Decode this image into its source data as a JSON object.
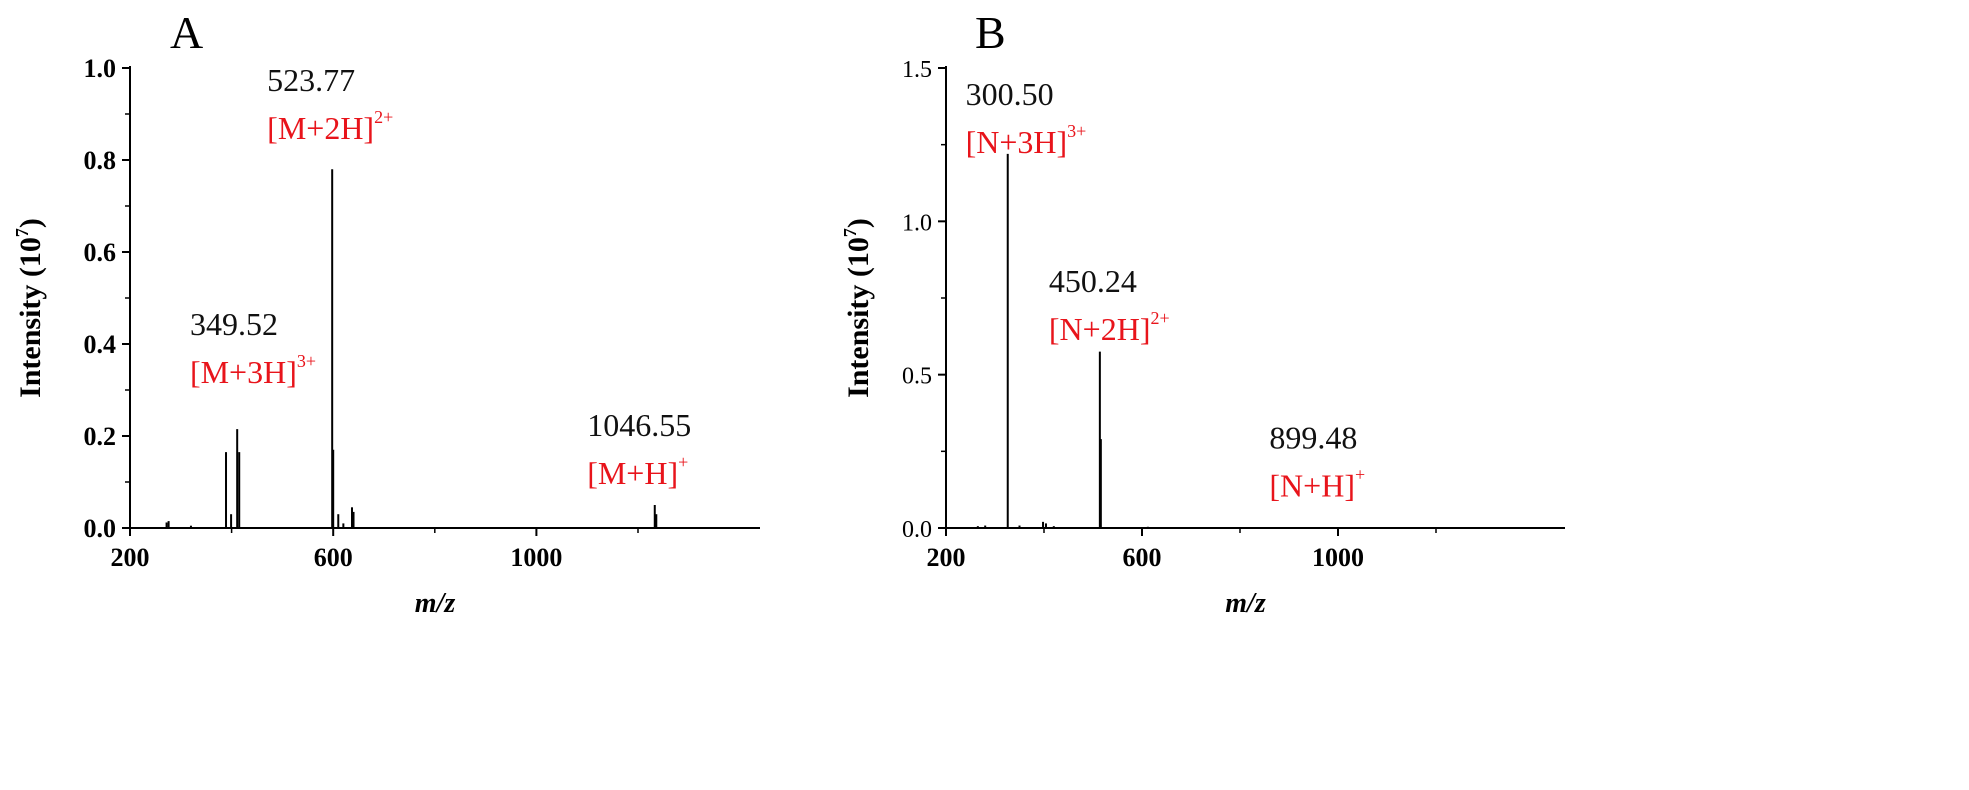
{
  "chart_data": [
    {
      "type": "bar",
      "panel_label": "A",
      "xlabel": "m/z",
      "ylabel": "Intensity (10",
      "ylabel_exp": "7",
      "ylabel_close": ")",
      "xlim": [
        200,
        1440
      ],
      "ylim": [
        0,
        1.0
      ],
      "xticks": [
        200,
        600,
        1000
      ],
      "xtick_labels": [
        "200",
        "600",
        "1000"
      ],
      "yticks": [
        0,
        0.2,
        0.4,
        0.6,
        0.8,
        1.0
      ],
      "ytick_labels": [
        "0.0",
        "0.2",
        "0.4",
        "0.6",
        "0.8",
        "1.0"
      ],
      "peaks": [
        {
          "x": 272,
          "y": 0.012
        },
        {
          "x": 276,
          "y": 0.015
        },
        {
          "x": 320,
          "y": 0.005
        },
        {
          "x": 389,
          "y": 0.165
        },
        {
          "x": 399,
          "y": 0.03
        },
        {
          "x": 411,
          "y": 0.215
        },
        {
          "x": 415,
          "y": 0.165
        },
        {
          "x": 598,
          "y": 0.78
        },
        {
          "x": 600,
          "y": 0.17
        },
        {
          "x": 610,
          "y": 0.03
        },
        {
          "x": 620,
          "y": 0.01
        },
        {
          "x": 637,
          "y": 0.045
        },
        {
          "x": 640,
          "y": 0.035
        },
        {
          "x": 1233,
          "y": 0.05
        },
        {
          "x": 1236,
          "y": 0.03
        }
      ],
      "annotations": [
        {
          "mz": "349.52",
          "ion": "[M+3H]",
          "charge": "3+",
          "ax": 318,
          "ay": 0.42
        },
        {
          "mz": "523.77",
          "ion": "[M+2H]",
          "charge": "2+",
          "ax": 470,
          "ay": 0.95
        },
        {
          "mz": "1046.55",
          "ion": "[M+H]",
          "charge": "+",
          "ax": 1100,
          "ay": 0.2
        }
      ]
    },
    {
      "type": "bar",
      "panel_label": "B",
      "xlabel": "m/z",
      "ylabel": "Intensity (10",
      "ylabel_exp": "7",
      "ylabel_close": ")",
      "xlim": [
        200,
        1463
      ],
      "ylim": [
        0,
        1.5
      ],
      "xticks": [
        200,
        600,
        1000
      ],
      "xtick_labels": [
        "200",
        "600",
        "1000"
      ],
      "yticks": [
        0,
        0.5,
        1.0,
        1.5
      ],
      "ytick_labels": [
        "0.0",
        "0.5",
        "1.0",
        "1.5"
      ],
      "peaks": [
        {
          "x": 265,
          "y": 0.006
        },
        {
          "x": 280,
          "y": 0.008
        },
        {
          "x": 326,
          "y": 1.22
        },
        {
          "x": 350,
          "y": 0.008
        },
        {
          "x": 398,
          "y": 0.02
        },
        {
          "x": 404,
          "y": 0.015
        },
        {
          "x": 420,
          "y": 0.006
        },
        {
          "x": 514,
          "y": 0.575
        },
        {
          "x": 516,
          "y": 0.29
        },
        {
          "x": 612,
          "y": 0.004
        }
      ],
      "annotations": [
        {
          "mz": "300.50",
          "ion": "[N+3H]",
          "charge": "3+",
          "ax": 240,
          "ay": 1.38
        },
        {
          "mz": "450.24",
          "ion": "[N+2H]",
          "charge": "2+",
          "ax": 410,
          "ay": 0.77
        },
        {
          "mz": "899.48",
          "ion": "[N+H]",
          "charge": "+",
          "ax": 860,
          "ay": 0.26
        }
      ]
    }
  ]
}
